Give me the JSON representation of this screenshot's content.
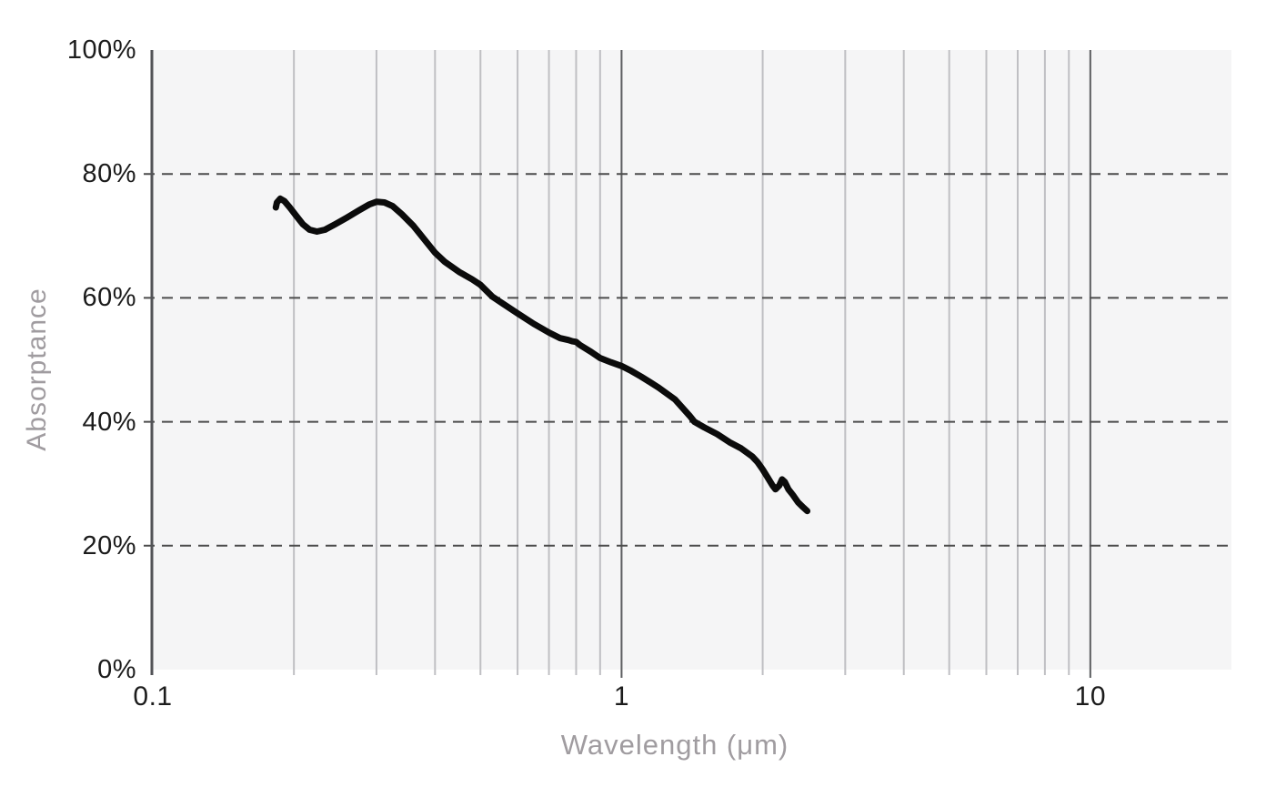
{
  "chart_data": {
    "type": "line",
    "title": "",
    "xlabel": "Wavelength (μm)",
    "ylabel": "Absorptance",
    "x_scale": "log",
    "xlim": [
      0.1,
      20
    ],
    "ylim": [
      0,
      100
    ],
    "grid": true,
    "legend": false,
    "x_ticks": [
      {
        "value": 0.1,
        "label": "0.1"
      },
      {
        "value": 1,
        "label": "1"
      },
      {
        "value": 10,
        "label": "10"
      }
    ],
    "y_ticks": [
      {
        "value": 100,
        "label": "100%"
      },
      {
        "value": 80,
        "label": "80%"
      },
      {
        "value": 60,
        "label": "60%"
      },
      {
        "value": 40,
        "label": "40%"
      },
      {
        "value": 20,
        "label": "20%"
      },
      {
        "value": 0,
        "label": "0%"
      }
    ],
    "x_minor_gridlines": [
      0.2,
      0.3,
      0.4,
      0.5,
      0.6,
      0.7,
      0.8,
      0.9,
      2,
      3,
      4,
      5,
      6,
      7,
      8,
      9
    ],
    "x_major_gridlines": [
      1,
      10
    ],
    "y_dashed_gridlines": [
      20,
      40,
      60,
      80
    ],
    "colors": {
      "plot_background": "#f5f5f6",
      "minor_gridline": "#bfbfc3",
      "major_gridline": "#5d5e61",
      "axis_line": "#515256",
      "dashed_gridline": "#4c4c4c",
      "curve": "#0b0b0b",
      "tick_label": "#1c1c1c",
      "axis_title": "#a09ca0"
    },
    "series": [
      {
        "name": "absorptance-curve",
        "color": "#0b0b0b",
        "points": [
          [
            0.183,
            74.6
          ],
          [
            0.184,
            75.4
          ],
          [
            0.187,
            76.0
          ],
          [
            0.191,
            75.6
          ],
          [
            0.196,
            74.6
          ],
          [
            0.202,
            73.3
          ],
          [
            0.209,
            71.9
          ],
          [
            0.216,
            71.0
          ],
          [
            0.224,
            70.7
          ],
          [
            0.233,
            71.0
          ],
          [
            0.245,
            71.9
          ],
          [
            0.26,
            73.0
          ],
          [
            0.275,
            74.1
          ],
          [
            0.29,
            75.1
          ],
          [
            0.3,
            75.5
          ],
          [
            0.312,
            75.4
          ],
          [
            0.325,
            74.8
          ],
          [
            0.34,
            73.5
          ],
          [
            0.36,
            71.6
          ],
          [
            0.38,
            69.4
          ],
          [
            0.4,
            67.3
          ],
          [
            0.42,
            65.8
          ],
          [
            0.45,
            64.2
          ],
          [
            0.48,
            63.0
          ],
          [
            0.5,
            62.1
          ],
          [
            0.53,
            60.2
          ],
          [
            0.56,
            59.0
          ],
          [
            0.6,
            57.5
          ],
          [
            0.65,
            55.8
          ],
          [
            0.7,
            54.4
          ],
          [
            0.74,
            53.5
          ],
          [
            0.77,
            53.2
          ],
          [
            0.785,
            53.0
          ],
          [
            0.8,
            52.9
          ],
          [
            0.815,
            52.4
          ],
          [
            0.86,
            51.3
          ],
          [
            0.9,
            50.3
          ],
          [
            0.95,
            49.6
          ],
          [
            1.0,
            49.0
          ],
          [
            1.05,
            48.2
          ],
          [
            1.1,
            47.3
          ],
          [
            1.15,
            46.4
          ],
          [
            1.2,
            45.5
          ],
          [
            1.3,
            43.6
          ],
          [
            1.4,
            40.9
          ],
          [
            1.43,
            40.0
          ],
          [
            1.5,
            39.1
          ],
          [
            1.6,
            38.0
          ],
          [
            1.7,
            36.7
          ],
          [
            1.8,
            35.7
          ],
          [
            1.9,
            34.4
          ],
          [
            1.95,
            33.5
          ],
          [
            2.0,
            32.3
          ],
          [
            2.05,
            31.0
          ],
          [
            2.1,
            29.7
          ],
          [
            2.13,
            29.1
          ],
          [
            2.17,
            29.7
          ],
          [
            2.2,
            30.7
          ],
          [
            2.23,
            30.3
          ],
          [
            2.27,
            29.1
          ],
          [
            2.32,
            28.2
          ],
          [
            2.38,
            27.0
          ],
          [
            2.44,
            26.2
          ],
          [
            2.49,
            25.6
          ]
        ]
      }
    ]
  }
}
